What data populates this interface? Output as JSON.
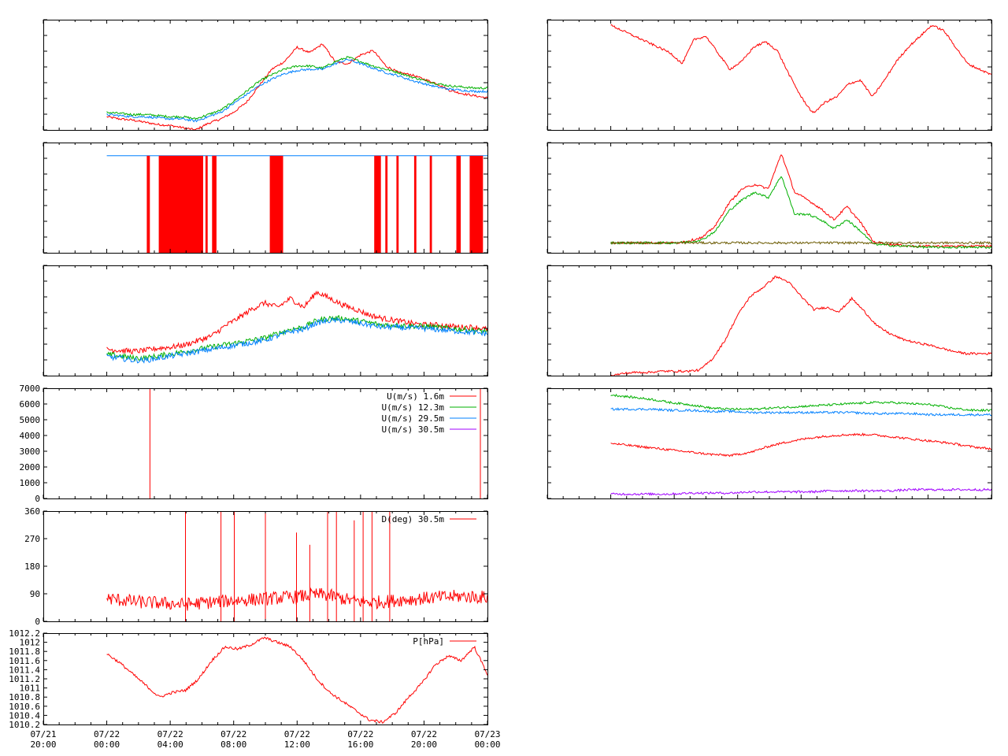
{
  "colors": {
    "red": "#ff0000",
    "green": "#00b000",
    "blue": "#0080ff",
    "purple": "#a000ff",
    "olive": "#6b5a00",
    "axis": "#000000"
  },
  "x_axis": {
    "tick_labels": [
      {
        "date": "07/21",
        "time": "20:00"
      },
      {
        "date": "07/22",
        "time": "00:00"
      },
      {
        "date": "07/22",
        "time": "04:00"
      },
      {
        "date": "07/22",
        "time": "08:00"
      },
      {
        "date": "07/22",
        "time": "12:00"
      },
      {
        "date": "07/22",
        "time": "16:00"
      },
      {
        "date": "07/22",
        "time": "20:00"
      },
      {
        "date": "07/23",
        "time": "00:00"
      }
    ]
  },
  "chart_data": [
    {
      "id": "left-1",
      "type": "line",
      "x_range": [
        "07/21 20:00",
        "07/23 00:00"
      ],
      "series": [
        {
          "color": "red",
          "values": [
            0.12,
            0.1,
            0.09,
            0.07,
            0.05,
            0.04,
            0.02,
            0.0,
            0.06,
            0.1,
            0.16,
            0.25,
            0.4,
            0.55,
            0.62,
            0.75,
            0.7,
            0.78,
            0.62,
            0.6,
            0.68,
            0.72,
            0.58,
            0.52,
            0.5,
            0.46,
            0.42,
            0.36,
            0.33,
            0.31,
            0.29
          ]
        },
        {
          "color": "green",
          "values": [
            0.16,
            0.15,
            0.14,
            0.14,
            0.13,
            0.12,
            0.12,
            0.1,
            0.14,
            0.18,
            0.26,
            0.35,
            0.44,
            0.5,
            0.55,
            0.58,
            0.58,
            0.56,
            0.62,
            0.66,
            0.62,
            0.58,
            0.55,
            0.52,
            0.48,
            0.45,
            0.42,
            0.4,
            0.39,
            0.38,
            0.38
          ]
        },
        {
          "color": "blue",
          "values": [
            0.14,
            0.13,
            0.12,
            0.12,
            0.11,
            0.1,
            0.1,
            0.08,
            0.12,
            0.16,
            0.24,
            0.32,
            0.4,
            0.46,
            0.51,
            0.54,
            0.55,
            0.55,
            0.6,
            0.64,
            0.6,
            0.56,
            0.52,
            0.49,
            0.45,
            0.42,
            0.39,
            0.37,
            0.36,
            0.35,
            0.35
          ]
        }
      ]
    },
    {
      "id": "left-2",
      "type": "line",
      "x_range": [
        "07/21 20:00",
        "07/23 00:00"
      ],
      "series": [
        {
          "color": "blue",
          "values": [
            0.88
          ]
        }
      ],
      "red_drops": [
        {
          "from": 0.233,
          "to": 0.24
        },
        {
          "from": 0.26,
          "to": 0.36
        },
        {
          "from": 0.365,
          "to": 0.37
        },
        {
          "from": 0.38,
          "to": 0.39
        },
        {
          "from": 0.51,
          "to": 0.54
        },
        {
          "from": 0.745,
          "to": 0.76
        },
        {
          "from": 0.77,
          "to": 0.775
        },
        {
          "from": 0.795,
          "to": 0.8
        },
        {
          "from": 0.835,
          "to": 0.84
        },
        {
          "from": 0.87,
          "to": 0.875
        },
        {
          "from": 0.93,
          "to": 0.94
        },
        {
          "from": 0.96,
          "to": 0.99
        }
      ]
    },
    {
      "id": "left-3",
      "type": "line",
      "x_range": [
        "07/21 20:00",
        "07/23 00:00"
      ],
      "series": [
        {
          "color": "red",
          "values": [
            0.24,
            0.23,
            0.22,
            0.23,
            0.25,
            0.26,
            0.28,
            0.32,
            0.36,
            0.45,
            0.52,
            0.6,
            0.66,
            0.62,
            0.7,
            0.62,
            0.76,
            0.7,
            0.64,
            0.6,
            0.55,
            0.52,
            0.5,
            0.48,
            0.46,
            0.46,
            0.45,
            0.44,
            0.44,
            0.42
          ]
        },
        {
          "color": "green",
          "values": [
            0.19,
            0.18,
            0.16,
            0.16,
            0.18,
            0.2,
            0.22,
            0.24,
            0.26,
            0.28,
            0.3,
            0.32,
            0.34,
            0.38,
            0.42,
            0.44,
            0.5,
            0.52,
            0.52,
            0.5,
            0.48,
            0.46,
            0.46,
            0.45,
            0.45,
            0.44,
            0.43,
            0.42,
            0.41,
            0.4
          ]
        },
        {
          "color": "blue",
          "values": [
            0.17,
            0.16,
            0.14,
            0.14,
            0.16,
            0.18,
            0.2,
            0.22,
            0.24,
            0.26,
            0.28,
            0.3,
            0.32,
            0.36,
            0.4,
            0.42,
            0.48,
            0.5,
            0.5,
            0.48,
            0.46,
            0.44,
            0.44,
            0.43,
            0.43,
            0.42,
            0.41,
            0.4,
            0.39,
            0.38
          ]
        }
      ]
    },
    {
      "id": "left-4",
      "type": "line",
      "x_range": [
        "07/21 20:00",
        "07/23 00:00"
      ],
      "ylim": [
        0,
        7000
      ],
      "yticks": [
        "0",
        "1000",
        "2000",
        "3000",
        "4000",
        "5000",
        "6000",
        "7000"
      ],
      "legend": [
        {
          "label": "U(m/s)  1.6m",
          "color": "red"
        },
        {
          "label": "U(m/s) 12.3m",
          "color": "green"
        },
        {
          "label": "U(m/s) 29.5m",
          "color": "blue"
        },
        {
          "label": "U(m/s) 30.5m",
          "color": "purple"
        }
      ],
      "legend_placement": "top-right",
      "spikes": [
        {
          "color": "red",
          "x": 0.24,
          "y": 7000
        },
        {
          "color": "red",
          "x": 0.984,
          "y": 7000
        }
      ]
    },
    {
      "id": "left-5",
      "type": "line",
      "x_range": [
        "07/21 20:00",
        "07/23 00:00"
      ],
      "ylim": [
        0,
        360
      ],
      "yticks": [
        "0",
        "90",
        "180",
        "270",
        "360"
      ],
      "legend": [
        {
          "label": "D(deg)  30.5m",
          "color": "red"
        }
      ],
      "legend_placement": "top-right",
      "series": [
        {
          "color": "red",
          "values": [
            75,
            70,
            65,
            62,
            60,
            58,
            55,
            58,
            62,
            65,
            68,
            70,
            72,
            75,
            78,
            80,
            85,
            88,
            80,
            70,
            65,
            62,
            65,
            70,
            72,
            75,
            78,
            80,
            82,
            80,
            78
          ]
        }
      ],
      "spikes": [
        {
          "color": "red",
          "x": 0.32,
          "y": 360
        },
        {
          "color": "red",
          "x": 0.4,
          "y": 360
        },
        {
          "color": "red",
          "x": 0.43,
          "y": 360
        },
        {
          "color": "red",
          "x": 0.5,
          "y": 360
        },
        {
          "color": "red",
          "x": 0.57,
          "y": 290
        },
        {
          "color": "red",
          "x": 0.6,
          "y": 250
        },
        {
          "color": "red",
          "x": 0.64,
          "y": 360
        },
        {
          "color": "red",
          "x": 0.66,
          "y": 360
        },
        {
          "color": "red",
          "x": 0.7,
          "y": 330
        },
        {
          "color": "red",
          "x": 0.72,
          "y": 360
        },
        {
          "color": "red",
          "x": 0.74,
          "y": 360
        },
        {
          "color": "red",
          "x": 0.78,
          "y": 360
        }
      ]
    },
    {
      "id": "left-6",
      "type": "line",
      "x_range": [
        "07/21 20:00",
        "07/23 00:00"
      ],
      "ylim": [
        1010.2,
        1012.2
      ],
      "yticks": [
        "1010.2",
        "1010.4",
        "1010.6",
        "1010.8",
        "1011",
        "1011.2",
        "1011.4",
        "1011.6",
        "1011.8",
        "1012",
        "1012.2"
      ],
      "legend": [
        {
          "label": "P[hPa]",
          "color": "red"
        }
      ],
      "legend_placement": "top-right",
      "series": [
        {
          "color": "red",
          "values": [
            1011.75,
            1011.55,
            1011.3,
            1011.05,
            1010.8,
            1010.9,
            1010.95,
            1011.2,
            1011.6,
            1011.9,
            1011.85,
            1011.95,
            1012.1,
            1012.0,
            1011.9,
            1011.6,
            1011.2,
            1010.9,
            1010.7,
            1010.5,
            1010.3,
            1010.25,
            1010.45,
            1010.8,
            1011.1,
            1011.5,
            1011.7,
            1011.6,
            1011.9,
            1011.3
          ]
        }
      ]
    },
    {
      "id": "right-1",
      "type": "line",
      "x_range": [
        "07/21 20:00",
        "07/23 00:00"
      ],
      "series": [
        {
          "color": "red",
          "values": [
            0.95,
            0.9,
            0.85,
            0.8,
            0.75,
            0.7,
            0.6,
            0.82,
            0.85,
            0.7,
            0.55,
            0.62,
            0.75,
            0.8,
            0.72,
            0.5,
            0.3,
            0.15,
            0.25,
            0.3,
            0.42,
            0.45,
            0.3,
            0.45,
            0.62,
            0.75,
            0.85,
            0.95,
            0.9,
            0.75,
            0.6,
            0.55,
            0.5
          ]
        }
      ]
    },
    {
      "id": "right-2",
      "type": "line",
      "x_range": [
        "07/21 20:00",
        "07/23 00:00"
      ],
      "series": [
        {
          "color": "red",
          "values": [
            0.09,
            0.09,
            0.09,
            0.09,
            0.09,
            0.09,
            0.11,
            0.14,
            0.25,
            0.45,
            0.58,
            0.62,
            0.58,
            0.9,
            0.55,
            0.48,
            0.4,
            0.3,
            0.42,
            0.28,
            0.1,
            0.08,
            0.07,
            0.06,
            0.06,
            0.06,
            0.06,
            0.06,
            0.06,
            0.06
          ]
        },
        {
          "color": "green",
          "values": [
            0.09,
            0.09,
            0.09,
            0.09,
            0.09,
            0.09,
            0.1,
            0.12,
            0.2,
            0.38,
            0.48,
            0.55,
            0.5,
            0.7,
            0.35,
            0.35,
            0.3,
            0.22,
            0.3,
            0.2,
            0.08,
            0.07,
            0.06,
            0.06,
            0.05,
            0.05,
            0.05,
            0.05,
            0.05,
            0.05
          ]
        },
        {
          "color": "olive",
          "values": [
            0.09,
            0.09,
            0.09,
            0.09,
            0.09,
            0.09,
            0.09,
            0.09,
            0.09,
            0.09,
            0.09,
            0.09,
            0.09,
            0.09,
            0.09,
            0.09,
            0.09,
            0.09,
            0.09,
            0.09,
            0.09,
            0.09,
            0.09,
            0.09,
            0.09,
            0.09,
            0.09,
            0.09,
            0.09,
            0.09
          ]
        }
      ]
    },
    {
      "id": "right-3",
      "type": "line",
      "x_range": [
        "07/21 20:00",
        "07/23 00:00"
      ],
      "series": [
        {
          "color": "red",
          "values": [
            0.0,
            0.02,
            0.03,
            0.03,
            0.04,
            0.04,
            0.04,
            0.05,
            0.15,
            0.32,
            0.55,
            0.72,
            0.8,
            0.9,
            0.85,
            0.72,
            0.6,
            0.62,
            0.58,
            0.7,
            0.58,
            0.45,
            0.38,
            0.33,
            0.3,
            0.28,
            0.25,
            0.22,
            0.2,
            0.2,
            0.2
          ]
        }
      ]
    },
    {
      "id": "right-4",
      "type": "line",
      "x_range": [
        "07/21 20:00",
        "07/23 00:00"
      ],
      "series": [
        {
          "color": "green",
          "values": [
            0.94,
            0.92,
            0.9,
            0.87,
            0.85,
            0.82,
            0.81,
            0.81,
            0.82,
            0.83,
            0.84,
            0.85,
            0.86,
            0.87,
            0.87,
            0.86,
            0.85,
            0.82,
            0.8,
            0.8
          ]
        },
        {
          "color": "blue",
          "values": [
            0.81,
            0.81,
            0.81,
            0.8,
            0.8,
            0.79,
            0.79,
            0.78,
            0.78,
            0.78,
            0.78,
            0.78,
            0.78,
            0.77,
            0.77,
            0.77,
            0.76,
            0.76,
            0.76,
            0.76
          ]
        },
        {
          "color": "red",
          "values": [
            0.5,
            0.48,
            0.46,
            0.44,
            0.42,
            0.4,
            0.39,
            0.42,
            0.48,
            0.52,
            0.55,
            0.57,
            0.58,
            0.58,
            0.56,
            0.54,
            0.52,
            0.5,
            0.47,
            0.45
          ]
        },
        {
          "color": "purple",
          "values": [
            0.04,
            0.04,
            0.04,
            0.04,
            0.05,
            0.05,
            0.05,
            0.06,
            0.06,
            0.06,
            0.06,
            0.07,
            0.07,
            0.07,
            0.07,
            0.08,
            0.08,
            0.08,
            0.08,
            0.08
          ]
        }
      ]
    }
  ]
}
